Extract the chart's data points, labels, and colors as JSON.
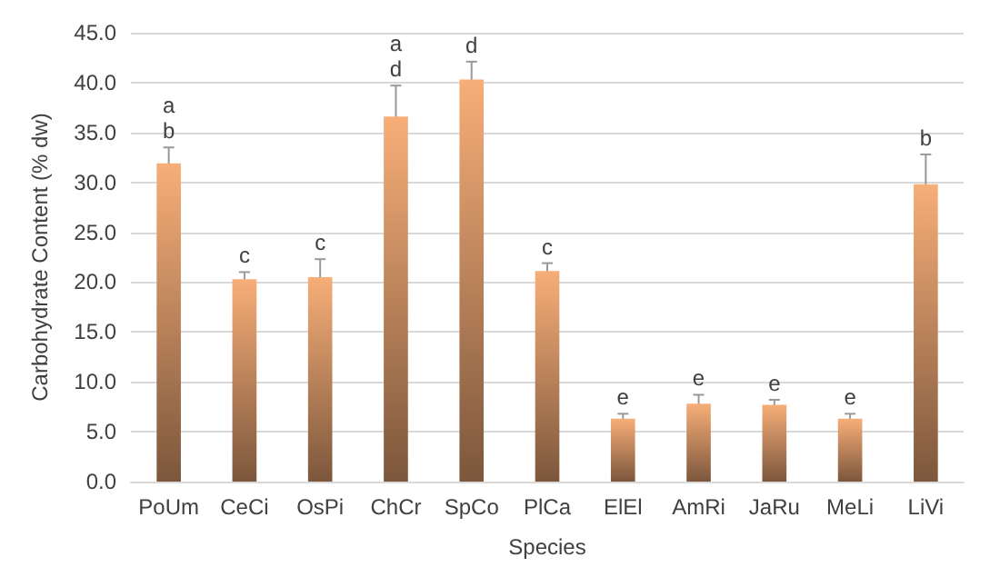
{
  "chart_data": {
    "type": "bar",
    "xlabel": "Species",
    "ylabel": "Carbohydrate Content (% dw)",
    "categories": [
      "PoUm",
      "CeCi",
      "OsPi",
      "ChCr",
      "SpCo",
      "PlCa",
      "ElEl",
      "AmRi",
      "JaRu",
      "MeLi",
      "LiVi"
    ],
    "values": [
      31.9,
      20.3,
      20.5,
      36.6,
      40.3,
      21.1,
      6.3,
      7.8,
      7.7,
      6.3,
      29.8
    ],
    "errors": [
      1.6,
      0.7,
      1.8,
      3.1,
      1.8,
      0.8,
      0.5,
      0.9,
      0.5,
      0.5,
      3.0
    ],
    "color": "#f7ae78",
    "ylim": [
      0,
      45
    ],
    "yticks": [
      {
        "value": 0,
        "label": "0.0"
      },
      {
        "value": 5,
        "label": "5.0"
      },
      {
        "value": 10,
        "label": "10.0"
      },
      {
        "value": 15,
        "label": "15.0"
      },
      {
        "value": 20,
        "label": "20.0"
      },
      {
        "value": 25,
        "label": "25.0"
      },
      {
        "value": 30,
        "label": "30.0"
      },
      {
        "value": 35,
        "label": "35.0"
      },
      {
        "value": 40,
        "label": "40.0"
      },
      {
        "value": 45,
        "label": "45.0"
      }
    ],
    "grid": "y",
    "annotations": [
      {
        "text": "a\nb",
        "x": "PoUm",
        "y": 33.5
      },
      {
        "text": "c",
        "x": "CeCi",
        "y": 21.0
      },
      {
        "text": "c",
        "x": "OsPi",
        "y": 22.3
      },
      {
        "text": "a\nd",
        "x": "ChCr",
        "y": 39.7
      },
      {
        "text": "d",
        "x": "SpCo",
        "y": 42.1
      },
      {
        "text": "c",
        "x": "PlCa",
        "y": 21.9
      },
      {
        "text": "e",
        "x": "ElEl",
        "y": 6.8
      },
      {
        "text": "e",
        "x": "AmRi",
        "y": 8.7
      },
      {
        "text": "e",
        "x": "JaRu",
        "y": 8.2
      },
      {
        "text": "e",
        "x": "MeLi",
        "y": 6.8
      },
      {
        "text": "b",
        "x": "LiVi",
        "y": 32.8
      }
    ]
  }
}
